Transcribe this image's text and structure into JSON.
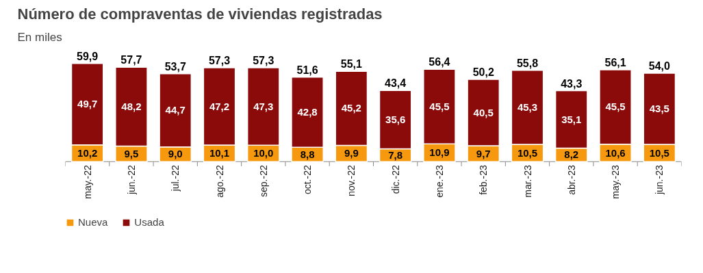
{
  "chart_data": {
    "type": "bar",
    "title": "Número de compraventas de viviendas registradas",
    "subtitle": "En miles",
    "stacked": true,
    "legend": "bottom left",
    "categories": [
      "may.-22",
      "jun.-22",
      "jul.-22",
      "ago.-22",
      "sep.-22",
      "oct.-22",
      "nov.-22",
      "dic.-22",
      "ene.-23",
      "feb.-23",
      "mar.-23",
      "abr.-23",
      "may.-23",
      "jun.-23"
    ],
    "series": [
      {
        "name": "Nueva",
        "color": "#f7990f",
        "values": [
          10.2,
          9.5,
          9.0,
          10.1,
          10.0,
          8.8,
          9.9,
          7.8,
          10.9,
          9.7,
          10.5,
          8.2,
          10.6,
          10.5
        ],
        "value_labels": [
          "10,2",
          "9,5",
          "9,0",
          "10,1",
          "10,0",
          "8,8",
          "9,9",
          "7,8",
          "10,9",
          "9,7",
          "10,5",
          "8,2",
          "10,6",
          "10,5"
        ]
      },
      {
        "name": "Usada",
        "color": "#8b0b0b",
        "values": [
          49.7,
          48.2,
          44.7,
          47.2,
          47.3,
          42.8,
          45.2,
          35.6,
          45.5,
          40.5,
          45.3,
          35.1,
          45.5,
          43.5
        ],
        "value_labels": [
          "49,7",
          "48,2",
          "44,7",
          "47,2",
          "47,3",
          "42,8",
          "45,2",
          "35,6",
          "45,5",
          "40,5",
          "45,3",
          "35,1",
          "45,5",
          "43,5"
        ]
      }
    ],
    "totals": [
      "59,9",
      "57,7",
      "53,7",
      "57,3",
      "57,3",
      "51,6",
      "55,1",
      "43,4",
      "56,4",
      "50,2",
      "55,8",
      "43,3",
      "56,1",
      "54,0"
    ]
  }
}
